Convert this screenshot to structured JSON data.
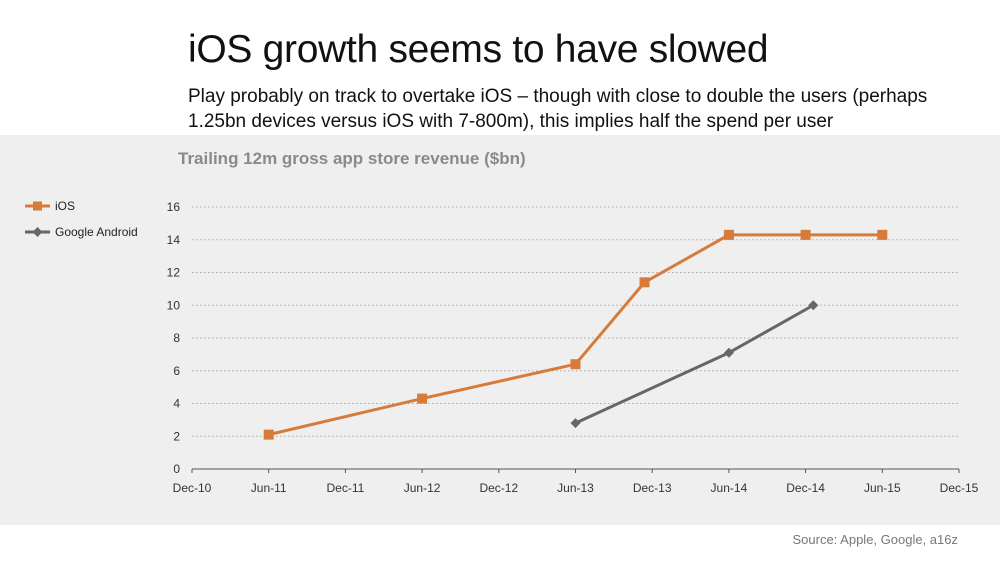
{
  "slide": {
    "title": "iOS growth seems to have slowed",
    "subtitle": "Play probably on track to overtake iOS – though with close to double the users (perhaps 1.25bn devices versus iOS with 7-800m), this implies half the spend per user",
    "source": "Source: Apple, Google, a16z"
  },
  "colors": {
    "background": "#ffffff",
    "panel": "#efefef",
    "ios": "#d67b3a",
    "android": "#666666",
    "axis_text": "#333333",
    "chart_title": "#8a8a8a",
    "grid": "#aaaaaa"
  },
  "chart_data": {
    "type": "line",
    "title": "Trailing 12m gross app store revenue ($bn)",
    "xlabel": "",
    "ylabel": "",
    "categories": [
      "Dec-10",
      "Jun-11",
      "Dec-11",
      "Jun-12",
      "Dec-12",
      "Jun-13",
      "Dec-13",
      "Jun-14",
      "Dec-14",
      "Jun-15",
      "Dec-15"
    ],
    "ylim": [
      0,
      16
    ],
    "yticks": [
      0,
      2,
      4,
      6,
      8,
      10,
      12,
      14,
      16
    ],
    "grid": true,
    "legend_position": "left",
    "series": [
      {
        "name": "iOS",
        "marker": "square",
        "points": [
          {
            "x": 1,
            "y": 2.1
          },
          {
            "x": 3,
            "y": 4.3
          },
          {
            "x": 5,
            "y": 6.4
          },
          {
            "x": 5.9,
            "y": 11.4
          },
          {
            "x": 7,
            "y": 14.3
          },
          {
            "x": 8,
            "y": 14.3
          },
          {
            "x": 9,
            "y": 14.3
          }
        ]
      },
      {
        "name": "Google Android",
        "marker": "diamond",
        "points": [
          {
            "x": 5,
            "y": 2.8
          },
          {
            "x": 7,
            "y": 7.1
          },
          {
            "x": 8.1,
            "y": 10.0
          }
        ]
      }
    ]
  }
}
